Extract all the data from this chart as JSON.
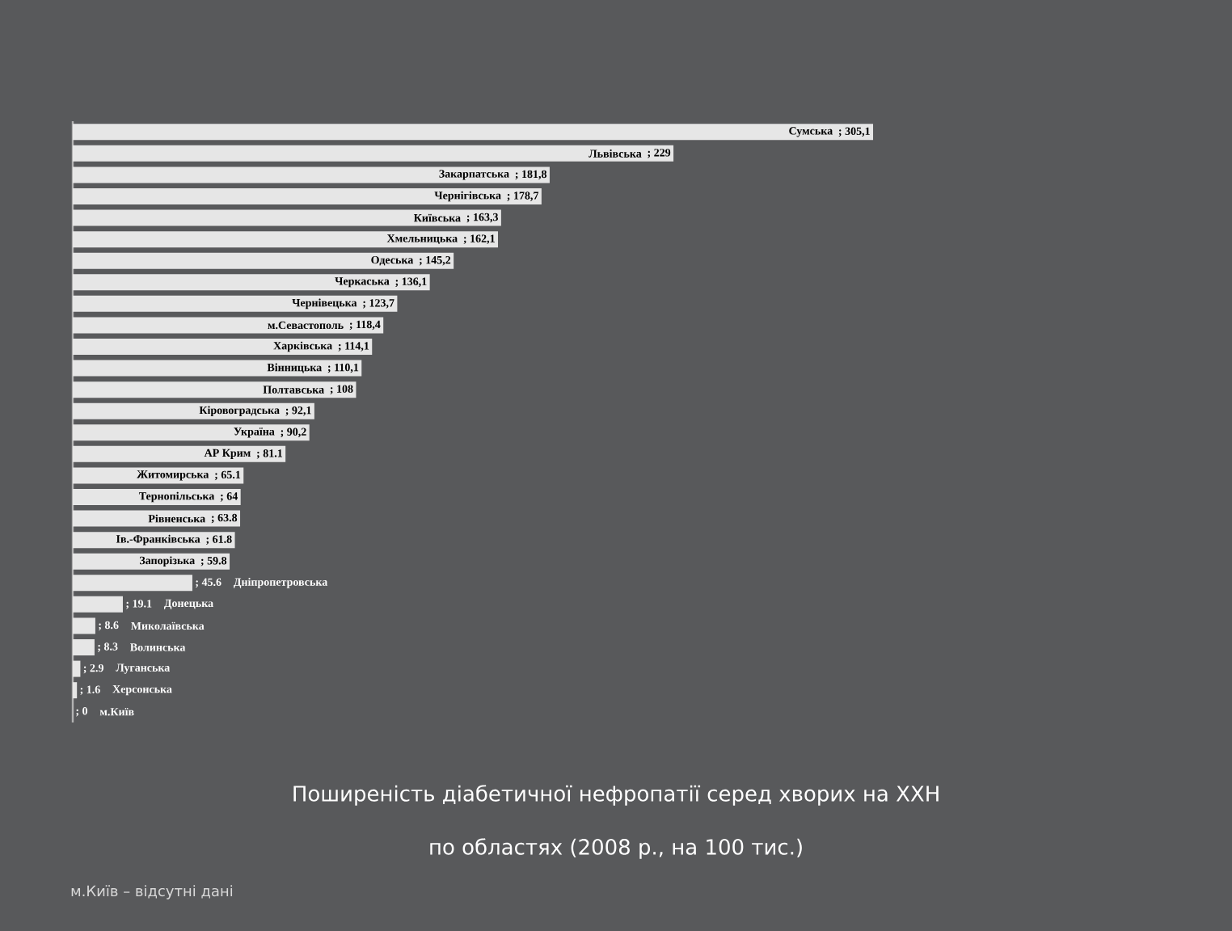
{
  "chart_data": {
    "type": "bar",
    "orientation": "horizontal",
    "title": "Поширеність діабетичної нефропатії серед хворих на ХХН",
    "subtitle": "по областях (2008 р., на 100 тис.)",
    "categories": [
      "Сумська",
      "Львівська",
      "Закарпатська",
      "Чернігівська",
      "Київська",
      "Хмельницька",
      "Одеська",
      "Черкаська",
      "Чернівецька",
      "м.Севастополь",
      "Харківська",
      "Вінницька",
      "Полтавська",
      "Кіровоградська",
      "Україна",
      "АР  Крим",
      "Житомирська",
      "Тернопільська",
      "Рівненська",
      "Ів.-Франківська",
      "Запорізька",
      "Дніпропетровська",
      "Донецька",
      "Миколаївська",
      "Волинська",
      "Луганська",
      "Херсонська",
      "м.Київ"
    ],
    "values": [
      305.1,
      229,
      181.8,
      178.7,
      163.3,
      162.1,
      145.2,
      136.1,
      123.7,
      118.4,
      114.1,
      110.1,
      108,
      92.1,
      90.2,
      81.1,
      65.1,
      64,
      63.8,
      61.8,
      59.8,
      45.6,
      19.1,
      8.6,
      8.3,
      2.9,
      1.6,
      0
    ],
    "value_labels": [
      "; 305,1",
      "; 229",
      "; 181,8",
      "; 178,7",
      "; 163,3",
      "; 162,1",
      "; 145,2",
      "; 136,1",
      "; 123,7",
      "; 118,4",
      "; 114,1",
      "; 110,1",
      "; 108",
      "; 92,1",
      "; 90,2",
      "; 81.1",
      "; 65.1",
      "; 64",
      "; 63.8",
      "; 61.8",
      "; 59.8",
      "; 45.6",
      "; 19.1",
      "; 8.6",
      "; 8.3",
      "; 2.9",
      "; 1.6",
      "; 0"
    ],
    "color": "#e6e6e6",
    "annotations": [
      "м.Київ – відсутні дані"
    ]
  }
}
